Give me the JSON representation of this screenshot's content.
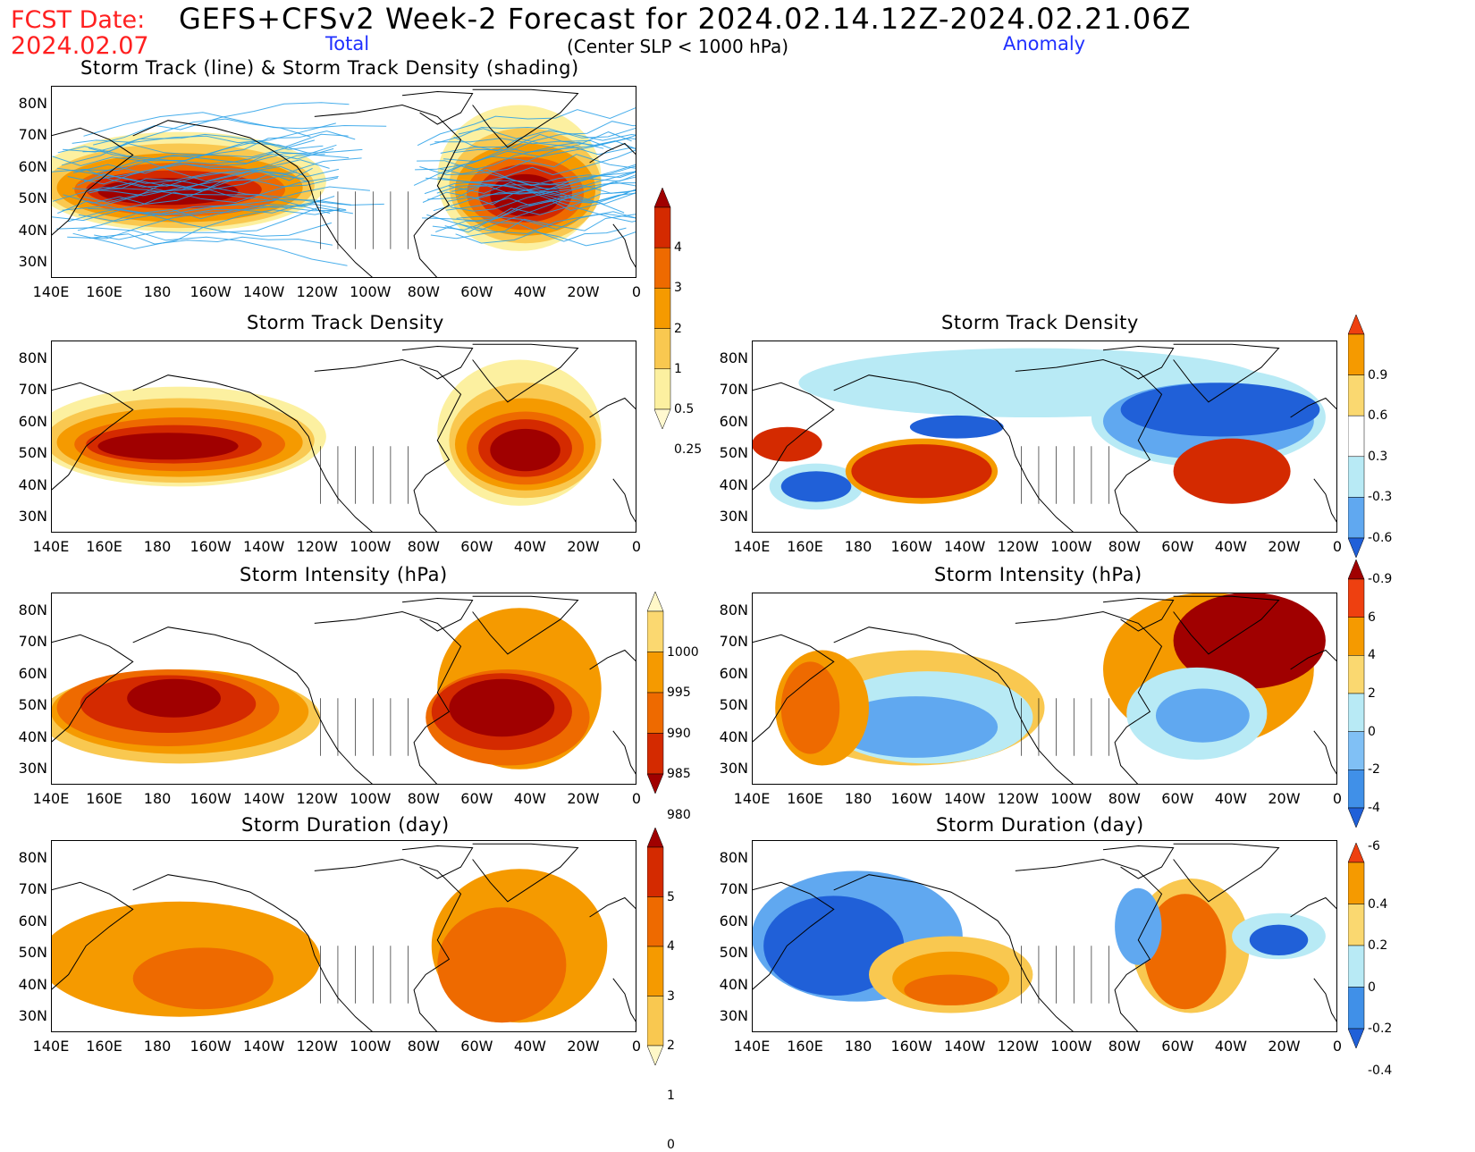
{
  "header": {
    "fcst_label": "FCST Date:",
    "fcst_date": "2024.02.07",
    "title": "GEFS+CFSv2 Week-2 Forecast for 2024.02.14.12Z-2024.02.21.06Z",
    "col_total": "Total",
    "col_anomaly": "Anomaly",
    "criterion": "(Center SLP < 1000 hPa)"
  },
  "axes": {
    "lat_labels": [
      "80N",
      "70N",
      "60N",
      "50N",
      "40N",
      "30N"
    ],
    "lon_labels": [
      "140E",
      "160E",
      "180",
      "160W",
      "140W",
      "120W",
      "100W",
      "80W",
      "60W",
      "40W",
      "20W",
      "0"
    ]
  },
  "panels": {
    "top": {
      "title": "Storm Track (line) & Storm Track Density (shading)"
    },
    "density_total": {
      "title": "Storm Track Density"
    },
    "density_anom": {
      "title": "Storm Track Density"
    },
    "intensity_total": {
      "title": "Storm Intensity (hPa)"
    },
    "intensity_anom": {
      "title": "Storm Intensity (hPa)"
    },
    "duration_total": {
      "title": "Storm Duration (day)"
    },
    "duration_anom": {
      "title": "Storm Duration (day)"
    }
  },
  "colorbars": {
    "density_total": {
      "labels": [
        "4",
        "3",
        "2",
        "1",
        "0.5",
        "0.25"
      ],
      "colors": [
        "#a00000",
        "#d42a00",
        "#ee6a00",
        "#f59a00",
        "#f9c850",
        "#fcf0a0",
        "#fff8d0"
      ]
    },
    "density_anom": {
      "labels": [
        "0.9",
        "0.6",
        "0.3",
        "-0.3",
        "-0.6",
        "-0.9"
      ],
      "colors": [
        "#ee4010",
        "#f59a00",
        "#fad870",
        "#ffffff",
        "#b8eaf5",
        "#60a8f0",
        "#2060d8"
      ]
    },
    "intensity_total": {
      "labels": [
        "1000",
        "995",
        "990",
        "985",
        "980"
      ],
      "colors": [
        "#fff8c8",
        "#fbd870",
        "#f59a00",
        "#ee6a00",
        "#d42a00",
        "#a00000"
      ]
    },
    "intensity_anom": {
      "labels": [
        "6",
        "4",
        "2",
        "0",
        "-2",
        "-4",
        "-6"
      ],
      "colors": [
        "#a00000",
        "#ee4010",
        "#f59a00",
        "#fad870",
        "#b8eaf5",
        "#80c0f5",
        "#4090e8",
        "#2060d8"
      ]
    },
    "duration_total": {
      "labels": [
        "5",
        "4",
        "3",
        "2",
        "1",
        "0"
      ],
      "colors": [
        "#a00000",
        "#d42a00",
        "#ee6a00",
        "#f59a00",
        "#f9c850",
        "#fff8c8"
      ]
    },
    "duration_anom": {
      "labels": [
        "0.4",
        "0.2",
        "0",
        "-0.2",
        "-0.4"
      ],
      "colors": [
        "#ee4010",
        "#f59a00",
        "#fad870",
        "#b8eaf5",
        "#4090e8",
        "#2060d8"
      ]
    }
  },
  "palette": {
    "dark_red": "#a00000",
    "red": "#d42a00",
    "orange_red": "#ee6a00",
    "orange": "#f59a00",
    "light_orange": "#f9c850",
    "pale_yellow": "#fcf0a0",
    "light_blue": "#b8eaf5",
    "mid_blue": "#60a8f0",
    "blue": "#2060d8",
    "track_blue": "#28a0e8"
  }
}
